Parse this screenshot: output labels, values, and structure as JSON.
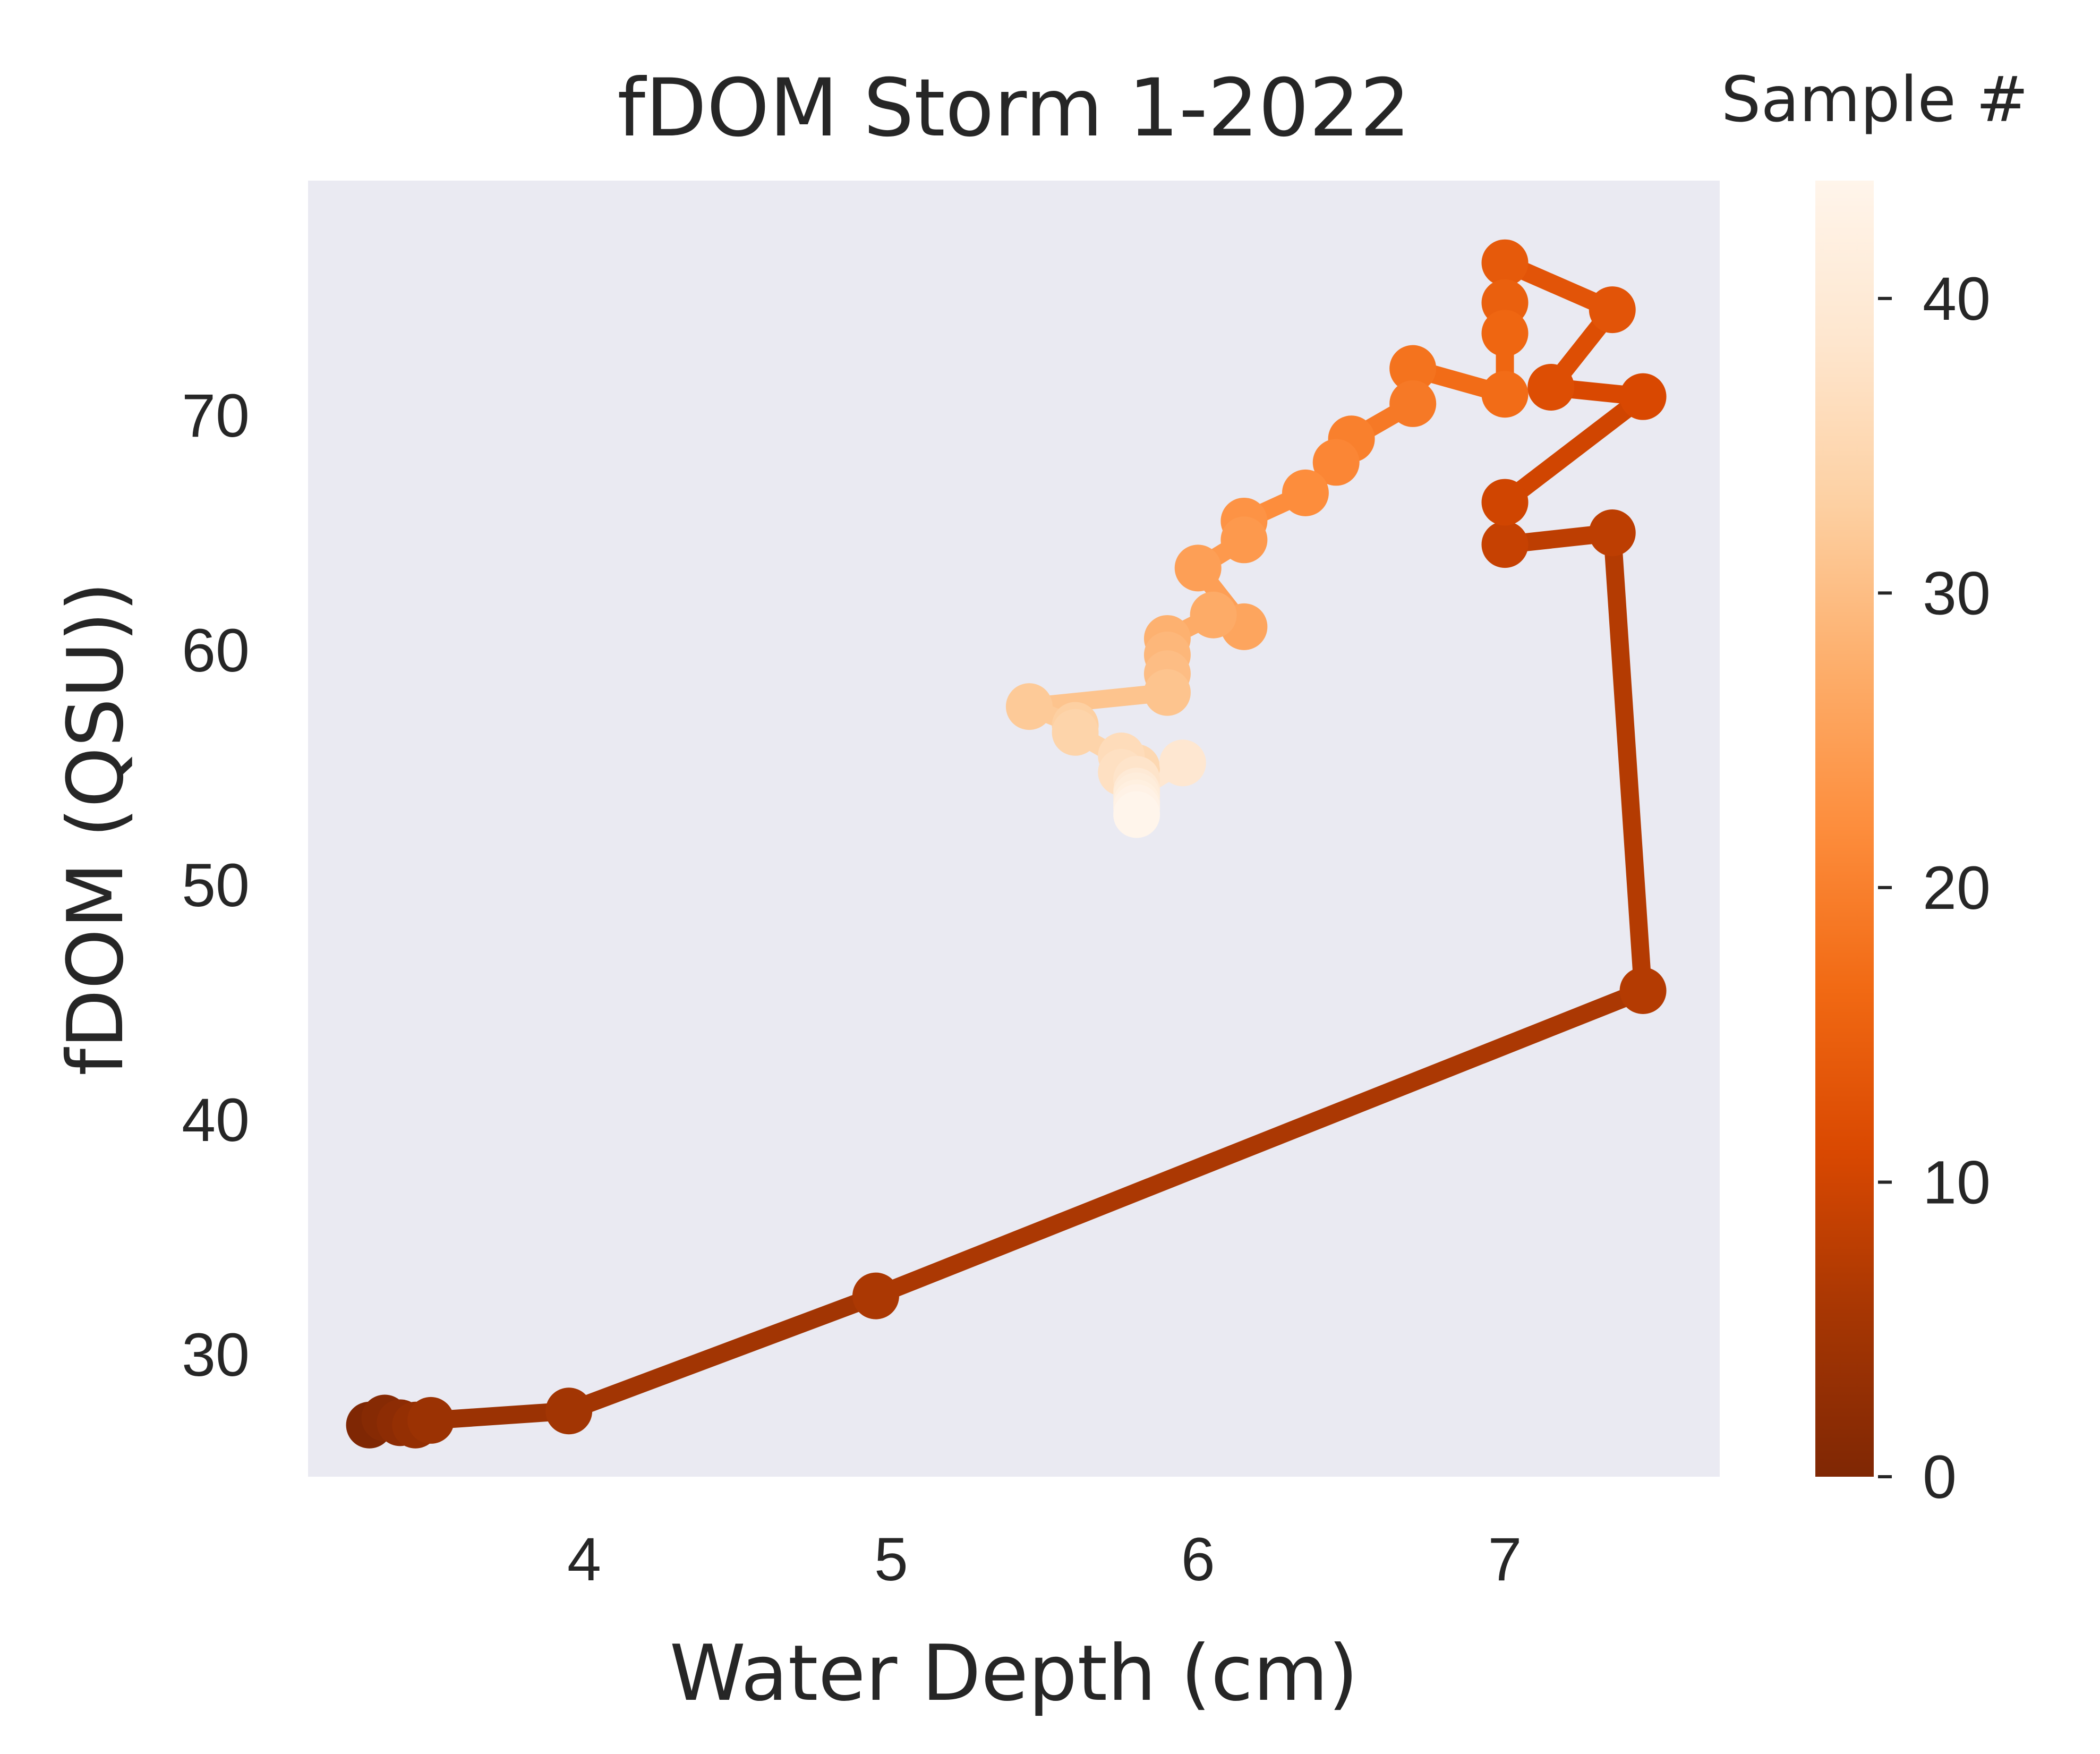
{
  "chart_data": {
    "type": "line",
    "title": "fDOM Storm 1-2022",
    "xlabel": "Water Depth (cm)",
    "ylabel": "fDOM (QSU))",
    "xlim": [
      3.1,
      7.7
    ],
    "ylim": [
      24.8,
      80.0
    ],
    "xticks": [
      4,
      5,
      6,
      7
    ],
    "yticks": [
      30,
      40,
      50,
      60,
      70
    ],
    "grid": false,
    "background": "#EAEAF2",
    "colormap": "Oranges_r",
    "colormap_stops": [
      "#7F2704",
      "#A63603",
      "#D94801",
      "#F16913",
      "#FD8D3C",
      "#FDAE6B",
      "#FDD0A2",
      "#FEE6CE",
      "#FFF5EB"
    ],
    "colorbar": {
      "label": "Sample #",
      "range": [
        0,
        44
      ],
      "ticks": [
        0,
        10,
        20,
        30,
        40
      ]
    },
    "series": [
      {
        "sample": [
          0,
          1,
          2,
          3,
          4,
          5,
          6,
          7,
          8,
          9,
          10,
          11,
          12,
          13,
          14,
          15,
          16,
          17,
          18,
          19,
          20,
          21,
          22,
          23,
          24,
          25,
          26,
          27,
          28,
          29,
          30,
          31,
          32,
          33,
          34,
          35,
          36,
          37,
          38,
          39,
          40,
          41,
          42,
          43,
          44
        ],
        "x": [
          3.3,
          3.35,
          3.4,
          3.45,
          3.5,
          3.95,
          4.95,
          7.45,
          7.35,
          7.0,
          7.0,
          7.45,
          7.15,
          7.35,
          7.0,
          7.0,
          7.0,
          7.0,
          6.7,
          6.7,
          6.5,
          6.45,
          6.35,
          6.15,
          6.15,
          6.0,
          6.15,
          6.05,
          5.9,
          5.9,
          5.9,
          5.9,
          5.45,
          5.6,
          5.6,
          5.8,
          5.75,
          5.75,
          5.8,
          5.95,
          5.8,
          5.8,
          5.8,
          5.8,
          5.8
        ],
        "y": [
          27.0,
          27.3,
          27.1,
          27.0,
          27.2,
          27.6,
          32.5,
          45.5,
          65.0,
          64.5,
          66.3,
          70.8,
          71.2,
          74.5,
          76.5,
          74.8,
          73.5,
          70.9,
          72.0,
          70.5,
          69.0,
          68.0,
          66.7,
          65.5,
          64.7,
          63.5,
          61.0,
          61.5,
          60.5,
          59.8,
          59.0,
          58.2,
          57.6,
          56.8,
          56.5,
          55.0,
          55.5,
          54.8,
          54.5,
          55.2,
          54.0,
          53.8,
          53.5,
          53.3,
          53.0
        ]
      }
    ]
  }
}
